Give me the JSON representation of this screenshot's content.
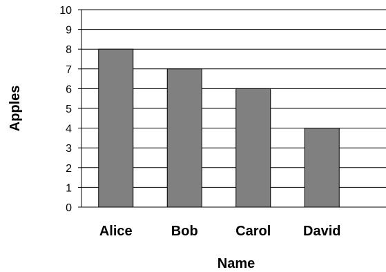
{
  "chart_data": {
    "type": "bar",
    "categories": [
      "Alice",
      "Bob",
      "Carol",
      "David"
    ],
    "values": [
      8,
      7,
      6,
      4
    ],
    "title": "",
    "xlabel": "Name",
    "ylabel": "Apples",
    "ylim": [
      0,
      10
    ],
    "yticks": [
      0,
      1,
      2,
      3,
      4,
      5,
      6,
      7,
      8,
      9,
      10
    ],
    "grid": true,
    "legend": "none",
    "bar_color": "#808080",
    "bar_edge_color": "#000000",
    "grid_color": "#000000"
  }
}
